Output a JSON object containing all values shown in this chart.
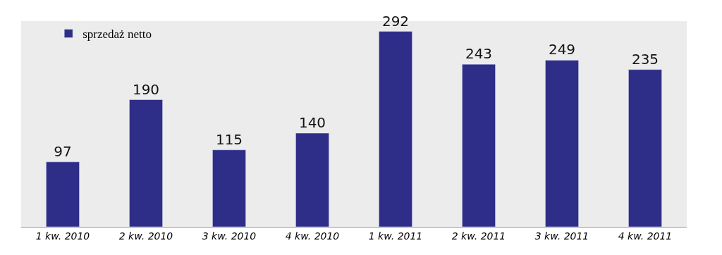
{
  "chart_data": {
    "type": "bar",
    "categories": [
      "1 kw. 2010",
      "2 kw. 2010",
      "3 kw. 2010",
      "4 kw. 2010",
      "1 kw. 2011",
      "2 kw. 2011",
      "3 kw. 2011",
      "4 kw. 2011"
    ],
    "series": [
      {
        "name": "sprzedaż netto",
        "color": "#2e2d88",
        "values": [
          97,
          190,
          115,
          140,
          292,
          243,
          249,
          235
        ]
      }
    ],
    "data_labels": true,
    "legend": "top left",
    "grid": false
  }
}
